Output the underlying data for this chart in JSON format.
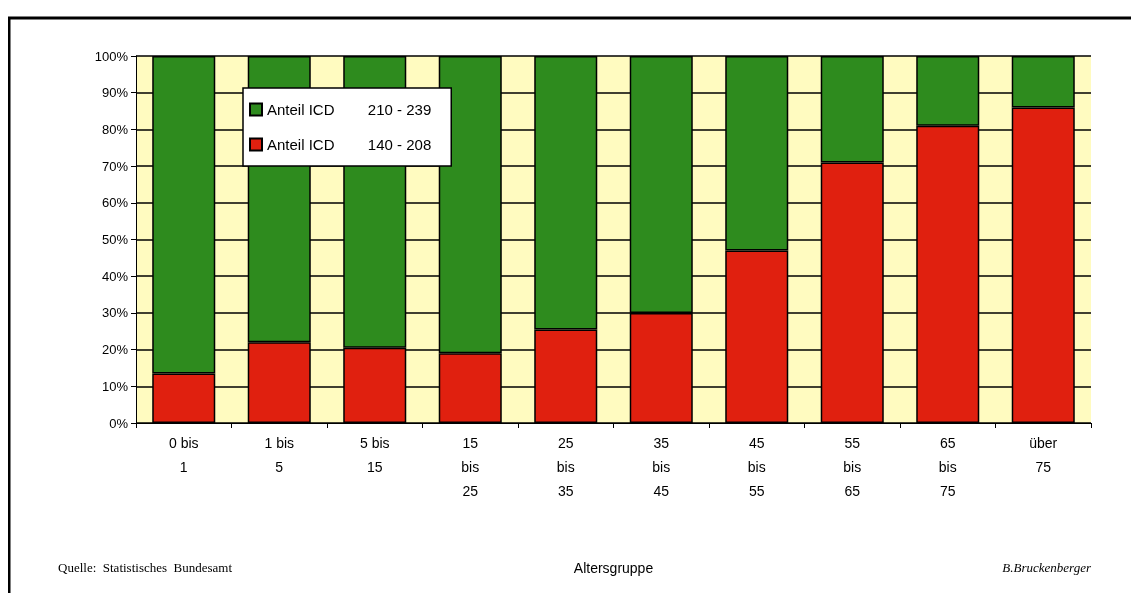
{
  "chart_data": {
    "type": "bar",
    "stacked": true,
    "xlabel": "Altersgruppe",
    "categories": [
      "0 bis\n1",
      "1 bis\n5",
      "5 bis\n15",
      "15\nbis\n25",
      "25\nbis\n35",
      "35\nbis\n45",
      "45\nbis\n55",
      "55\nbis\n65",
      "65\nbis\n75",
      "über\n75"
    ],
    "series": [
      {
        "name": "Anteil ICD        140 - 208",
        "color": "#e0200f",
        "values": [
          13.5,
          22,
          20.5,
          19,
          25.5,
          30,
          47,
          71,
          81,
          86
        ]
      },
      {
        "name": "Anteil ICD        210 - 239",
        "color": "#2e8b1e",
        "values": [
          86.5,
          78,
          79.5,
          81,
          74.5,
          70,
          53,
          29,
          19,
          14
        ]
      }
    ],
    "ylim": [
      0,
      100
    ],
    "yticks": [
      {
        "value": 0,
        "label": "0%"
      },
      {
        "value": 10,
        "label": "10%"
      },
      {
        "value": 20,
        "label": "20%"
      },
      {
        "value": 30,
        "label": "30%"
      },
      {
        "value": 40,
        "label": "40%"
      },
      {
        "value": 50,
        "label": "50%"
      },
      {
        "value": 60,
        "label": "60%"
      },
      {
        "value": 70,
        "label": "70%"
      },
      {
        "value": 80,
        "label": "80%"
      },
      {
        "value": 90,
        "label": "90%"
      },
      {
        "value": 100,
        "label": "100%"
      }
    ],
    "grid": "y",
    "legend": "top left",
    "bands": [
      {
        "axis": "y",
        "from": 0,
        "to": 100,
        "color": "#fffbc0"
      }
    ],
    "annotations": [
      "Quelle:  Statistisches  Bundesamt",
      "B.Bruckenberger"
    ]
  }
}
